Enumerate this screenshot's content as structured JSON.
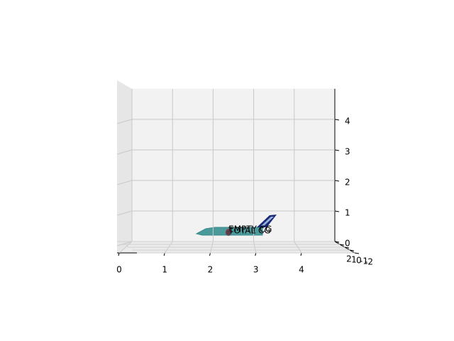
{
  "chart_data": {
    "type": "scatter3d",
    "xlim": [
      0,
      5
    ],
    "xticks": [
      0,
      1,
      2,
      3,
      4
    ],
    "ylim": [
      -2,
      2
    ],
    "yticks": [
      -2,
      -1,
      0,
      1,
      2
    ],
    "zlim": [
      0,
      5
    ],
    "zticks": [
      0,
      1,
      2,
      3,
      4
    ],
    "grid": true,
    "points": [
      {
        "name": "EMPTY CG",
        "x": 2.38,
        "z": 0.32,
        "color": "#8b2a2a"
      },
      {
        "name": "TOTAL CG",
        "x": 2.38,
        "z": 0.28,
        "color": "#5a3a4a"
      }
    ]
  }
}
